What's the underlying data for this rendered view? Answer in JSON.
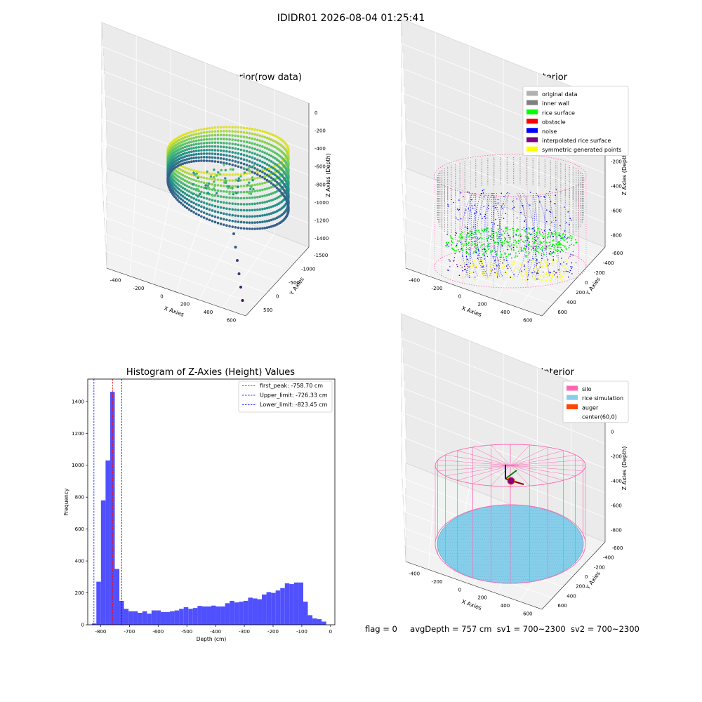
{
  "suptitle": "IDIDR01 2026-08-04 01:25:41",
  "status": {
    "flag": "flag = 0",
    "avg_depth": "avgDepth = 757 cm",
    "sv1": "sv1 = 700~2300",
    "sv2": "sv2 = 700~2300"
  },
  "colors": {
    "pink": "#ff66b3",
    "skyblue": "#87ceeb",
    "orangered": "#ff4500",
    "blue": "#0000ff",
    "green": "#00ff00",
    "gray": "#808080",
    "yellow": "#ffff00",
    "purple": "#800080",
    "lightgray": "#b0b0b0",
    "red": "#ff0000",
    "histogram_bar": "#5050ff"
  },
  "chart_data": [
    {
      "type": "scatter",
      "title": "3D Plot of Silo Interior(row data)",
      "projection": "3d",
      "xlabel": "X Axies",
      "ylabel": "Y Axies",
      "zlabel": "Z Axies (Depth)",
      "xticks": [
        "-400",
        "-200",
        "0",
        "200",
        "400",
        "600"
      ],
      "yticks": [
        "-1500",
        "-1000",
        "-500",
        "0",
        "500"
      ],
      "zticks": [
        "0",
        "-200",
        "-400",
        "-600",
        "-800",
        "-1000",
        "-1200",
        "-1400"
      ],
      "colormap": "viridis",
      "description_points": {
        "ring_radius": 550,
        "ring_top": 0,
        "ring_bottom": -700,
        "outlier_points": [
          {
            "x": 150,
            "y": -300,
            "z": -900
          },
          {
            "x": 160,
            "y": -400,
            "z": -1000
          },
          {
            "x": 170,
            "y": -600,
            "z": -1100
          },
          {
            "x": 180,
            "y": -800,
            "z": -1200
          },
          {
            "x": 190,
            "y": -1100,
            "z": -1300
          },
          {
            "x": 200,
            "y": -1400,
            "z": -1400
          }
        ]
      }
    },
    {
      "type": "scatter",
      "title": "3D classify of Silo Interior",
      "projection": "3d",
      "xlabel": "X Axies",
      "ylabel": "Y Axies",
      "zlabel": "Z Axies (Depth)",
      "xticks": [
        "-400",
        "-200",
        "0",
        "200",
        "400",
        "600"
      ],
      "yticks": [
        "-600",
        "-400",
        "-200",
        "0",
        "200",
        "400",
        "600"
      ],
      "zticks": [
        "200",
        "0",
        "-200",
        "-400",
        "-600",
        "-800"
      ],
      "legend_position": "upper right",
      "legend": [
        {
          "label": "original data",
          "color": "#b0b0b0"
        },
        {
          "label": "inner wall",
          "color": "#808080"
        },
        {
          "label": "rice surface",
          "color": "#00ff00"
        },
        {
          "label": "obstacle",
          "color": "#ff0000"
        },
        {
          "label": "noise",
          "color": "#0000ff"
        },
        {
          "label": "interpolated rice surface",
          "color": "#800080"
        },
        {
          "label": "symmetric generated points",
          "color": "#ffff00"
        }
      ]
    },
    {
      "type": "bar",
      "title": "Histogram of Z-Axies (Height) Values",
      "xlabel": "Depth (cm)",
      "ylabel": "Frequency",
      "xlim": [
        -845,
        15
      ],
      "ylim": [
        0,
        1540
      ],
      "xticks": [
        -800,
        -700,
        -600,
        -500,
        -400,
        -300,
        -200,
        -100,
        0
      ],
      "yticks": [
        0,
        200,
        400,
        600,
        800,
        1000,
        1200,
        1400
      ],
      "bin_width": 16,
      "bins": [
        {
          "x": -823,
          "value": 8
        },
        {
          "x": -807,
          "value": 270
        },
        {
          "x": -791,
          "value": 780
        },
        {
          "x": -775,
          "value": 1030
        },
        {
          "x": -759,
          "value": 1460
        },
        {
          "x": -743,
          "value": 350
        },
        {
          "x": -727,
          "value": 150
        },
        {
          "x": -711,
          "value": 100
        },
        {
          "x": -695,
          "value": 85
        },
        {
          "x": -679,
          "value": 85
        },
        {
          "x": -663,
          "value": 75
        },
        {
          "x": -647,
          "value": 85
        },
        {
          "x": -631,
          "value": 70
        },
        {
          "x": -615,
          "value": 90
        },
        {
          "x": -599,
          "value": 90
        },
        {
          "x": -583,
          "value": 80
        },
        {
          "x": -567,
          "value": 80
        },
        {
          "x": -551,
          "value": 85
        },
        {
          "x": -535,
          "value": 90
        },
        {
          "x": -519,
          "value": 100
        },
        {
          "x": -503,
          "value": 110
        },
        {
          "x": -487,
          "value": 100
        },
        {
          "x": -471,
          "value": 105
        },
        {
          "x": -455,
          "value": 118
        },
        {
          "x": -439,
          "value": 115
        },
        {
          "x": -423,
          "value": 115
        },
        {
          "x": -407,
          "value": 120
        },
        {
          "x": -391,
          "value": 115
        },
        {
          "x": -375,
          "value": 115
        },
        {
          "x": -359,
          "value": 135
        },
        {
          "x": -343,
          "value": 150
        },
        {
          "x": -327,
          "value": 140
        },
        {
          "x": -311,
          "value": 145
        },
        {
          "x": -295,
          "value": 150
        },
        {
          "x": -279,
          "value": 170
        },
        {
          "x": -263,
          "value": 165
        },
        {
          "x": -247,
          "value": 160
        },
        {
          "x": -231,
          "value": 190
        },
        {
          "x": -215,
          "value": 205
        },
        {
          "x": -199,
          "value": 200
        },
        {
          "x": -183,
          "value": 215
        },
        {
          "x": -167,
          "value": 230
        },
        {
          "x": -151,
          "value": 260
        },
        {
          "x": -135,
          "value": 255
        },
        {
          "x": -119,
          "value": 265
        },
        {
          "x": -103,
          "value": 265
        },
        {
          "x": -87,
          "value": 145
        },
        {
          "x": -71,
          "value": 60
        },
        {
          "x": -55,
          "value": 40
        },
        {
          "x": -39,
          "value": 35
        },
        {
          "x": -23,
          "value": 20
        }
      ],
      "vlines": [
        {
          "label": "first_peak: -758.70 cm",
          "x": -758.7,
          "color": "#ff0000"
        },
        {
          "label": "Upper_limit: -726.33 cm",
          "x": -726.33,
          "color": "#0000ff"
        },
        {
          "label": "Lower_limit: -823.45 cm",
          "x": -823.45,
          "color": "#0000ff"
        }
      ],
      "legend_position": "upper right"
    },
    {
      "type": "scatter",
      "title": "3D simulation of Silo Interior",
      "projection": "3d",
      "xlabel": "X Axies",
      "ylabel": "Y Axies",
      "zlabel": "Z Axies (Depth)",
      "xticks": [
        "-400",
        "-200",
        "0",
        "200",
        "400",
        "600"
      ],
      "yticks": [
        "-600",
        "-400",
        "-200",
        "0",
        "200",
        "400",
        "600"
      ],
      "zticks": [
        "200",
        "0",
        "-200",
        "-400",
        "-600",
        "-800"
      ],
      "legend_position": "upper right",
      "legend": [
        {
          "label": "silo",
          "color": "#ff66b3"
        },
        {
          "label": "rice simulation",
          "color": "#87ceeb"
        },
        {
          "label": "auger",
          "color": "#ff4500"
        },
        {
          "label": "center(60,0)",
          "color": ""
        }
      ]
    }
  ]
}
